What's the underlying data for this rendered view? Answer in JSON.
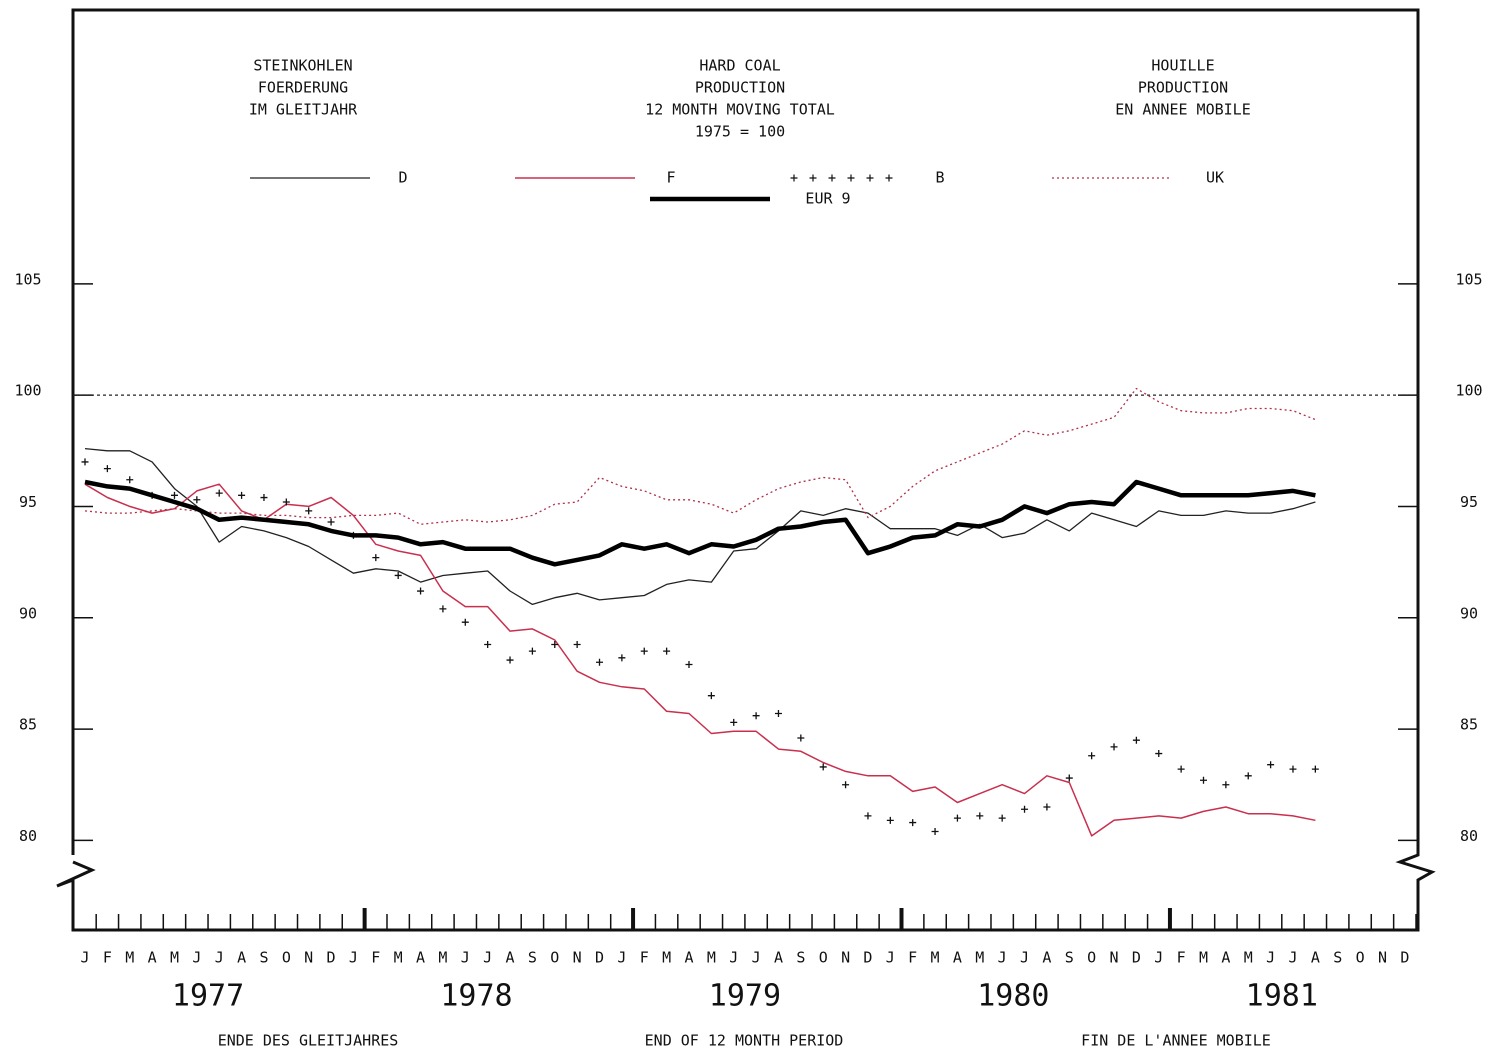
{
  "chart_data": {
    "type": "line",
    "title_de": [
      "STEINKOHLEN",
      "FOERDERUNG",
      "IM GLEITJAHR"
    ],
    "title_en": [
      "HARD COAL",
      "PRODUCTION",
      "12 MONTH MOVING TOTAL",
      "1975 = 100"
    ],
    "title_fr": [
      "HOUILLE",
      "PRODUCTION",
      "EN ANNEE MOBILE"
    ],
    "x_labels": [
      "ENDE DES GLEITJAHRES",
      "END OF 12 MONTH PERIOD",
      "FIN DE L'ANNEE MOBILE"
    ],
    "years": [
      "1977",
      "1978",
      "1979",
      "1980",
      "1981"
    ],
    "categories": [
      "J",
      "F",
      "M",
      "A",
      "M",
      "J",
      "J",
      "A",
      "S",
      "O",
      "N",
      "D",
      "J",
      "F",
      "M",
      "A",
      "M",
      "J",
      "J",
      "A",
      "S",
      "O",
      "N",
      "D",
      "J",
      "F",
      "M",
      "A",
      "M",
      "J",
      "J",
      "A",
      "S",
      "O",
      "N",
      "D",
      "J",
      "F",
      "M",
      "A",
      "M",
      "J",
      "J",
      "A",
      "S",
      "O",
      "N",
      "D",
      "J",
      "F",
      "M",
      "A",
      "M",
      "J",
      "J",
      "A",
      "S",
      "O",
      "N",
      "D"
    ],
    "ylim": [
      78.4,
      117.3
    ],
    "yticks": [
      80,
      85,
      90,
      95,
      100,
      105
    ],
    "reference_line": 100,
    "series": [
      {
        "name": "D",
        "color": "#222222",
        "style": "solid",
        "width": 1.3,
        "values": [
          97.6,
          97.5,
          97.5,
          97.0,
          95.8,
          95.0,
          93.4,
          94.1,
          93.9,
          93.6,
          93.2,
          92.6,
          92.0,
          92.2,
          92.1,
          91.6,
          91.9,
          92.0,
          92.1,
          91.2,
          90.6,
          90.9,
          91.1,
          90.8,
          90.9,
          91.0,
          91.5,
          91.7,
          91.6,
          93.0,
          93.1,
          93.9,
          94.8,
          94.6,
          94.9,
          94.7,
          94.0,
          94.0,
          94.0,
          93.7,
          94.2,
          93.6,
          93.8,
          94.4,
          93.9,
          94.7,
          94.4,
          94.1,
          94.8,
          94.6,
          94.6,
          94.8,
          94.7,
          94.7,
          94.9,
          95.2,
          null,
          null,
          null,
          null
        ]
      },
      {
        "name": "F",
        "color": "#c8304e",
        "style": "solid",
        "width": 1.5,
        "values": [
          96.0,
          95.4,
          95.0,
          94.7,
          94.9,
          95.7,
          96.0,
          94.8,
          94.4,
          95.1,
          95.0,
          95.4,
          94.6,
          93.3,
          93.0,
          92.8,
          91.2,
          90.5,
          90.5,
          89.4,
          89.5,
          89.0,
          87.6,
          87.1,
          86.9,
          86.8,
          85.8,
          85.7,
          84.8,
          84.9,
          84.9,
          84.1,
          84.0,
          83.5,
          83.1,
          82.9,
          82.9,
          82.2,
          82.4,
          81.7,
          82.1,
          82.5,
          82.1,
          82.9,
          82.6,
          80.2,
          80.9,
          81.0,
          81.1,
          81.0,
          81.3,
          81.5,
          81.2,
          81.2,
          81.1,
          80.9,
          null,
          null,
          null,
          null
        ]
      },
      {
        "name": "B",
        "color": "#111111",
        "style": "crosses",
        "width": 1.3,
        "values": [
          97.0,
          96.7,
          96.2,
          95.5,
          95.5,
          95.3,
          95.6,
          95.5,
          95.4,
          95.2,
          94.8,
          94.3,
          93.7,
          92.7,
          91.9,
          91.2,
          90.4,
          89.8,
          88.8,
          88.1,
          88.5,
          88.8,
          88.8,
          88.0,
          88.2,
          88.5,
          88.5,
          87.9,
          86.5,
          85.3,
          85.6,
          85.7,
          84.6,
          83.3,
          82.5,
          81.1,
          80.9,
          80.8,
          80.4,
          81.0,
          81.1,
          81.0,
          81.4,
          81.5,
          82.8,
          83.8,
          84.2,
          84.5,
          83.9,
          83.2,
          82.7,
          82.5,
          82.9,
          83.4,
          83.2,
          83.2,
          null,
          null,
          null,
          null
        ]
      },
      {
        "name": "UK",
        "color": "#b0304a",
        "style": "dotted",
        "width": 1.3,
        "values": [
          94.8,
          94.7,
          94.7,
          94.8,
          94.9,
          94.8,
          94.7,
          94.7,
          94.6,
          94.6,
          94.5,
          94.5,
          94.6,
          94.6,
          94.7,
          94.2,
          94.3,
          94.4,
          94.3,
          94.4,
          94.6,
          95.1,
          95.2,
          96.3,
          95.9,
          95.7,
          95.3,
          95.3,
          95.1,
          94.7,
          95.3,
          95.8,
          96.1,
          96.3,
          96.2,
          94.5,
          95.0,
          95.9,
          96.6,
          97.0,
          97.4,
          97.8,
          98.4,
          98.2,
          98.4,
          98.7,
          99.0,
          100.3,
          99.7,
          99.3,
          99.2,
          99.2,
          99.4,
          99.4,
          99.3,
          98.9,
          null,
          null,
          null,
          null
        ]
      },
      {
        "name": "EUR 9",
        "color": "#000000",
        "style": "solid",
        "width": 4.5,
        "values": [
          96.1,
          95.9,
          95.8,
          95.5,
          95.2,
          94.9,
          94.4,
          94.5,
          94.4,
          94.3,
          94.2,
          93.9,
          93.7,
          93.7,
          93.6,
          93.3,
          93.4,
          93.1,
          93.1,
          93.1,
          92.7,
          92.4,
          92.6,
          92.8,
          93.3,
          93.1,
          93.3,
          92.9,
          93.3,
          93.2,
          93.5,
          94.0,
          94.1,
          94.3,
          94.4,
          92.9,
          93.2,
          93.6,
          93.7,
          94.2,
          94.1,
          94.4,
          95.0,
          94.7,
          95.1,
          95.2,
          95.1,
          96.1,
          95.8,
          95.5,
          95.5,
          95.5,
          95.5,
          95.6,
          95.7,
          95.5,
          null,
          null,
          null,
          null
        ]
      }
    ]
  }
}
